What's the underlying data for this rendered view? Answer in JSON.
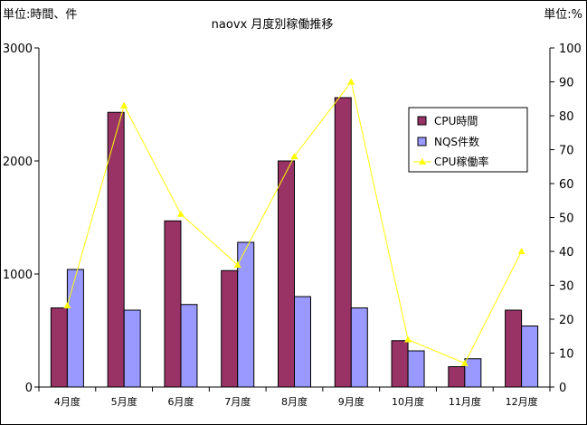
{
  "chart_data": {
    "type": "bar",
    "title": "naovx 月度別稼働推移",
    "left_axis_label": "単位:時間、件",
    "right_axis_label": "単位:%",
    "categories": [
      "4月度",
      "5月度",
      "6月度",
      "7月度",
      "8月度",
      "9月度",
      "10月度",
      "11月度",
      "12月度"
    ],
    "ylim": [
      0,
      3000
    ],
    "yticks": [
      "0",
      "1000",
      "2000",
      "3000"
    ],
    "y2lim": [
      0,
      100
    ],
    "y2ticks": [
      "0",
      "10",
      "20",
      "30",
      "40",
      "50",
      "60",
      "70",
      "80",
      "90",
      "100"
    ],
    "grid": false,
    "legend_position": "right",
    "series": [
      {
        "name": "CPU時間",
        "type": "bar",
        "axis": "left",
        "color": "#993366",
        "values": [
          700,
          2430,
          1470,
          1030,
          2000,
          2560,
          410,
          180,
          680
        ]
      },
      {
        "name": "NQS件数",
        "type": "bar",
        "axis": "left",
        "color": "#9999ff",
        "values": [
          1040,
          680,
          730,
          1280,
          800,
          700,
          320,
          250,
          540
        ]
      },
      {
        "name": "CPU稼働率",
        "type": "line",
        "axis": "right",
        "color": "#ffff00",
        "marker": "triangle",
        "values": [
          24,
          83,
          51,
          36,
          68,
          90,
          14,
          7,
          40
        ]
      }
    ]
  }
}
